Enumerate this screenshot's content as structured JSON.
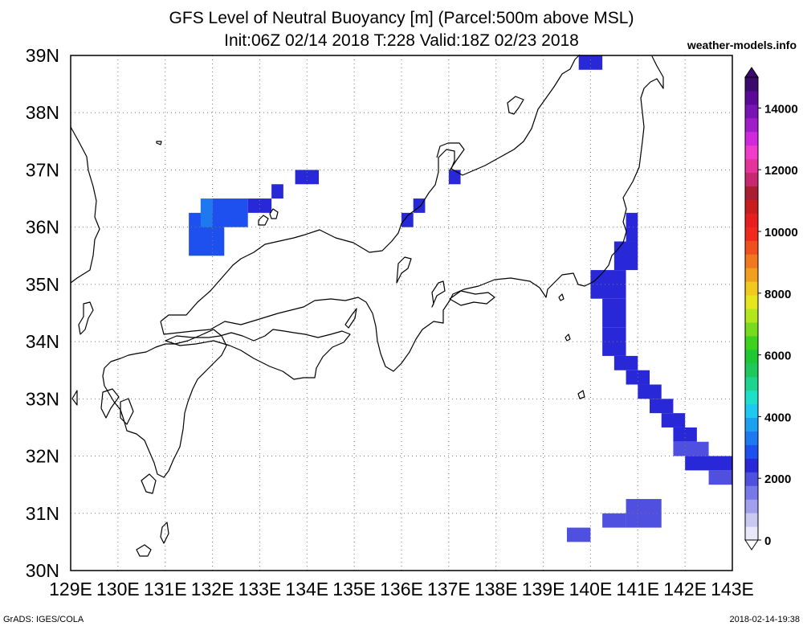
{
  "title": {
    "line1": "GFS Level of Neutral Buoyancy [m] (Parcel:500m above MSL)",
    "line2": "Init:06Z 02/14 2018 T:228 Valid:18Z 02/23 2018",
    "site": "weather-models.info"
  },
  "footer": {
    "left": "GrADS: IGES/COLA",
    "right": "2018-02-14-19:38"
  },
  "map": {
    "lon_range": [
      129,
      143
    ],
    "lat_range": [
      30,
      39
    ],
    "lon_labels": [
      "129E",
      "130E",
      "131E",
      "132E",
      "133E",
      "134E",
      "135E",
      "136E",
      "137E",
      "138E",
      "139E",
      "140E",
      "141E",
      "142E",
      "143E"
    ],
    "lat_labels": [
      "30N",
      "31N",
      "32N",
      "33N",
      "34N",
      "35N",
      "36N",
      "37N",
      "38N",
      "39N"
    ],
    "grid": "dotted",
    "cell_deg": 0.25,
    "lnb_cells": [
      {
        "lon": 131.5,
        "lat": 35.5,
        "lon2": 132.25,
        "lat2": 36.25,
        "value": 2800
      },
      {
        "lon": 131.75,
        "lat": 36.0,
        "lon2": 132.0,
        "lat2": 36.5,
        "value": 3400
      },
      {
        "lon": 132.0,
        "lat": 36.0,
        "lon2": 132.75,
        "lat2": 36.5,
        "value": 2900
      },
      {
        "lon": 132.75,
        "lat": 36.25,
        "lon2": 133.25,
        "lat2": 36.5,
        "value": 2500
      },
      {
        "lon": 133.25,
        "lat": 36.5,
        "lon2": 133.5,
        "lat2": 36.75,
        "value": 2500
      },
      {
        "lon": 133.75,
        "lat": 36.75,
        "lon2": 134.25,
        "lat2": 37.0,
        "value": 2300
      },
      {
        "lon": 136.0,
        "lat": 36.0,
        "lon2": 136.25,
        "lat2": 36.25,
        "value": 2500
      },
      {
        "lon": 136.25,
        "lat": 36.25,
        "lon2": 136.5,
        "lat2": 36.5,
        "value": 2500
      },
      {
        "lon": 137.0,
        "lat": 36.75,
        "lon2": 137.25,
        "lat2": 37.0,
        "value": 2600
      },
      {
        "lon": 139.75,
        "lat": 38.75,
        "lon2": 140.25,
        "lat2": 39.0,
        "value": 2600
      },
      {
        "lon": 140.75,
        "lat": 35.75,
        "lon2": 141.0,
        "lat2": 36.25,
        "value": 2400
      },
      {
        "lon": 140.5,
        "lat": 35.25,
        "lon2": 141.0,
        "lat2": 35.75,
        "value": 2300
      },
      {
        "lon": 140.0,
        "lat": 34.75,
        "lon2": 140.75,
        "lat2": 35.25,
        "value": 2500
      },
      {
        "lon": 140.25,
        "lat": 34.25,
        "lon2": 140.75,
        "lat2": 34.75,
        "value": 2600
      },
      {
        "lon": 140.25,
        "lat": 33.75,
        "lon2": 140.75,
        "lat2": 34.25,
        "value": 2400
      },
      {
        "lon": 140.5,
        "lat": 33.5,
        "lon2": 141.0,
        "lat2": 33.75,
        "value": 2300
      },
      {
        "lon": 140.75,
        "lat": 33.25,
        "lon2": 141.25,
        "lat2": 33.5,
        "value": 2300
      },
      {
        "lon": 141.0,
        "lat": 33.0,
        "lon2": 141.5,
        "lat2": 33.25,
        "value": 2300
      },
      {
        "lon": 141.25,
        "lat": 32.75,
        "lon2": 141.75,
        "lat2": 33.0,
        "value": 2300
      },
      {
        "lon": 141.5,
        "lat": 32.5,
        "lon2": 142.0,
        "lat2": 32.75,
        "value": 2300
      },
      {
        "lon": 141.75,
        "lat": 32.25,
        "lon2": 142.25,
        "lat2": 32.5,
        "value": 2300
      },
      {
        "lon": 141.75,
        "lat": 32.0,
        "lon2": 142.5,
        "lat2": 32.25,
        "value": 2200
      },
      {
        "lon": 142.0,
        "lat": 31.75,
        "lon2": 143.0,
        "lat2": 32.0,
        "value": 2300
      },
      {
        "lon": 142.5,
        "lat": 31.5,
        "lon2": 143.0,
        "lat2": 31.75,
        "value": 2100
      },
      {
        "lon": 140.75,
        "lat": 30.75,
        "lon2": 141.5,
        "lat2": 31.25,
        "value": 2000
      },
      {
        "lon": 140.25,
        "lat": 30.75,
        "lon2": 140.75,
        "lat2": 31.0,
        "value": 2000
      },
      {
        "lon": 139.5,
        "lat": 30.5,
        "lon2": 140.0,
        "lat2": 30.75,
        "value": 1800
      }
    ]
  },
  "colorbar": {
    "labels": [
      "0",
      "2000",
      "4000",
      "6000",
      "8000",
      "10000",
      "12000",
      "14000"
    ],
    "min": 0,
    "max": 15000,
    "colors": [
      "#e8e8f8",
      "#c8c8f0",
      "#a0a0ec",
      "#7878e8",
      "#5050e0",
      "#2828d8",
      "#1e50f0",
      "#1e78f0",
      "#1ea0f0",
      "#1ec8f0",
      "#1ee0c8",
      "#1ed290",
      "#1ec85a",
      "#1ec832",
      "#3cd21e",
      "#78dc1e",
      "#b4e61e",
      "#e6e61e",
      "#f0c81e",
      "#f0a01e",
      "#f0781e",
      "#f0501e",
      "#f0281e",
      "#e61e1e",
      "#c81e1e",
      "#aa1e32",
      "#c8286e",
      "#e6329b",
      "#f03cc8",
      "#d228dc",
      "#a01ec8",
      "#7814b4",
      "#5a0a96",
      "#3c0a6e"
    ]
  }
}
